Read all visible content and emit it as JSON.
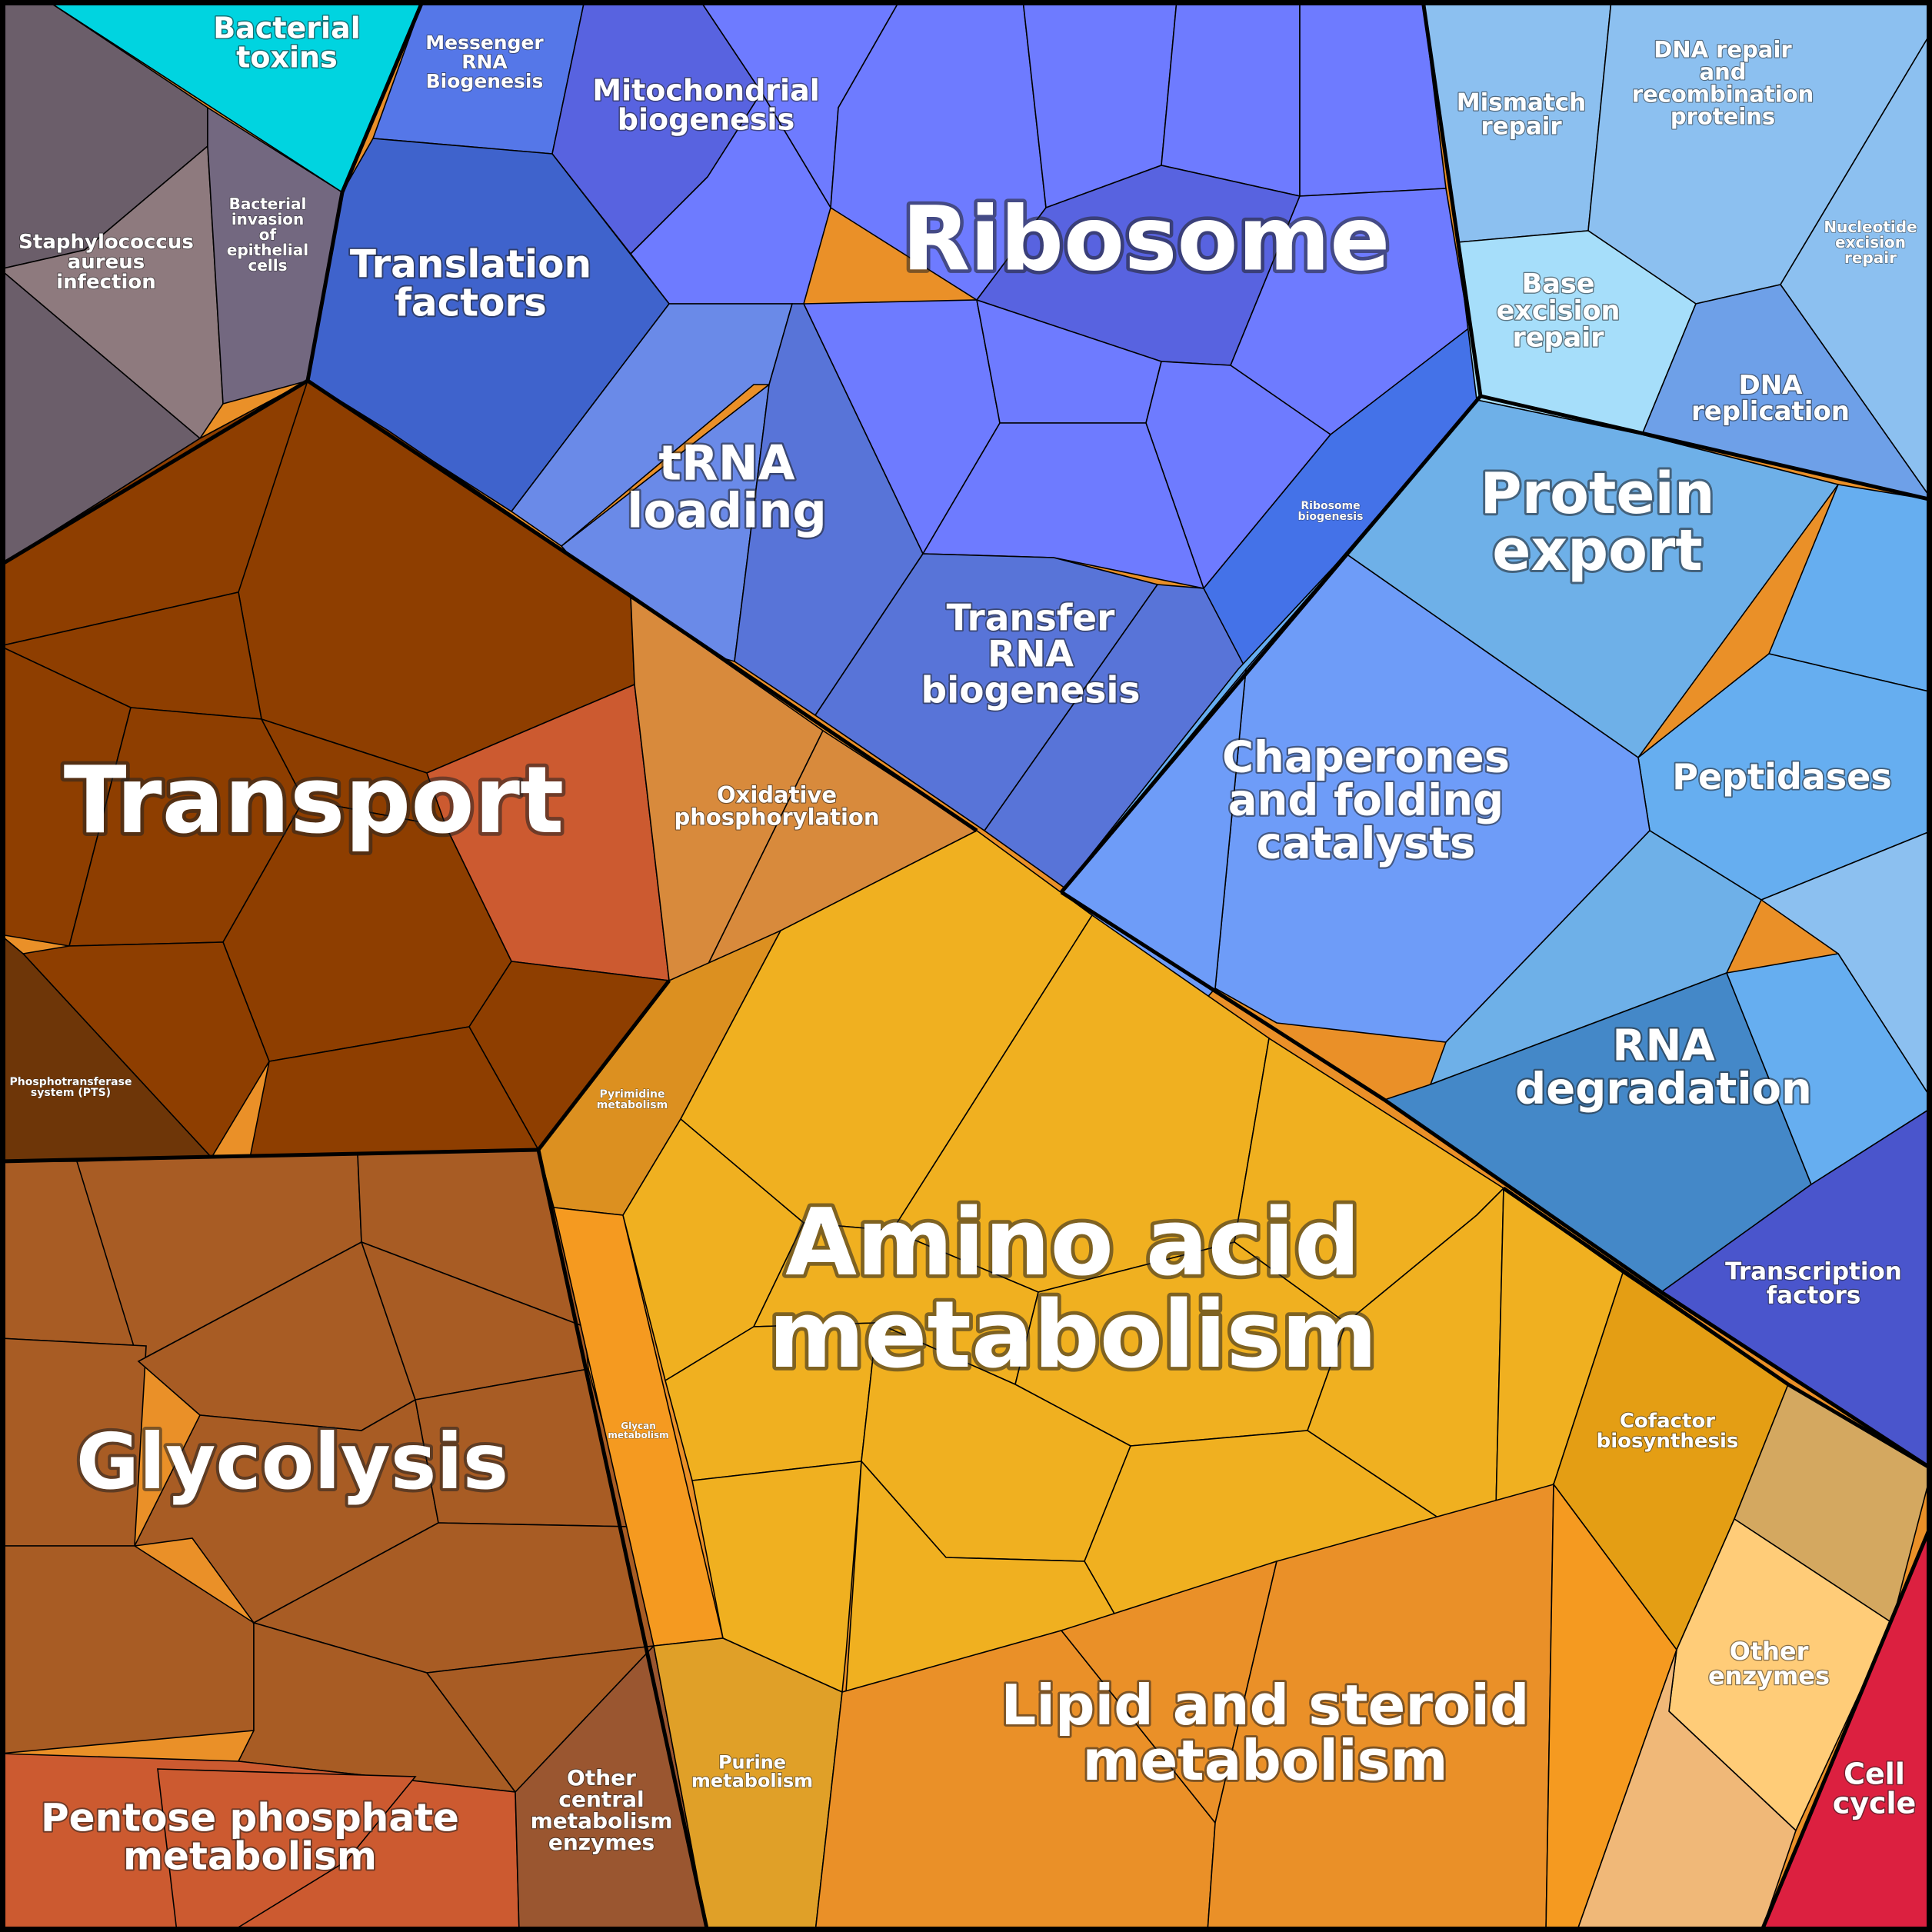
{
  "diagram": {
    "title": "",
    "labels": {
      "bacterial_toxins": [
        "Bacterial",
        "toxins"
      ],
      "messenger_rna": [
        "Messenger",
        "RNA",
        "Biogenesis"
      ],
      "mitochondrial": [
        "Mitochondrial",
        "biogenesis"
      ],
      "ribosome": [
        "Ribosome"
      ],
      "mismatch_repair": [
        "Mismatch",
        "repair"
      ],
      "dna_repair": [
        "DNA repair",
        "and",
        "recombination",
        "proteins"
      ],
      "nucleotide_excision": [
        "Nucleotide",
        "excision",
        "repair"
      ],
      "staphylococcus": [
        "Staphylococcus",
        "aureus",
        "infection"
      ],
      "bacterial_invasion": [
        "Bacterial",
        "invasion",
        "of",
        "epithelial",
        "cells"
      ],
      "translation_factors": [
        "Translation",
        "factors"
      ],
      "base_excision": [
        "Base",
        "excision",
        "repair"
      ],
      "dna_replication": [
        "DNA",
        "replication"
      ],
      "trna_loading": [
        "tRNA",
        "loading"
      ],
      "ribosome_biogenesis": [
        "Ribosome",
        "biogenesis"
      ],
      "protein_export": [
        "Protein",
        "export"
      ],
      "transfer_rna": [
        "Transfer",
        "RNA",
        "biogenesis"
      ],
      "transport": [
        "Transport"
      ],
      "oxidative": [
        "Oxidative",
        "phosphorylation"
      ],
      "chaperones": [
        "Chaperones",
        "and folding",
        "catalysts"
      ],
      "peptidases": [
        "Peptidases"
      ],
      "pts": [
        "Phosphotransferase",
        "system (PTS)"
      ],
      "pyrimidine": [
        "Pyrimidine",
        "metabolism"
      ],
      "rna_degradation": [
        "RNA",
        "degradation"
      ],
      "amino_acid": [
        "Amino acid",
        "metabolism"
      ],
      "transcription_factors": [
        "Transcription",
        "factors"
      ],
      "glycan": [
        "Glycan",
        "metabolism"
      ],
      "glycolysis": [
        "Glycolysis"
      ],
      "cofactor": [
        "Cofactor",
        "biosynthesis"
      ],
      "other_enzymes": [
        "Other",
        "enzymes"
      ],
      "purine": [
        "Purine",
        "metabolism"
      ],
      "lipid": [
        "Lipid and steroid",
        "metabolism"
      ],
      "cell_cycle": [
        "Cell",
        "cycle"
      ],
      "pentose": [
        "Pentose phosphate",
        "metabolism"
      ],
      "other_central": [
        "Other",
        "central",
        "metabolism",
        "enzymes"
      ]
    },
    "colors": {
      "bacterial_toxins": "#00d4e0",
      "infection_gray": "#6b5e6a",
      "staph_light": "#8e7a7e",
      "invasion_gray": "#736880",
      "mrna_blue": "#5577e8",
      "mito_blue": "#5863e0",
      "ribosome_violet": "#6e7bff",
      "translation_blue": "#3f63cc",
      "trna_blue": "#6a8ae8",
      "transfer_rna_blue": "#5874d8",
      "ribo_biogenesis": "#4472e8",
      "repair_light": "#8cc0f0",
      "base_excision": "#a6defa",
      "dna_replication": "#6ea0e8",
      "protein_export": "#6eb0e8",
      "chaperones_blue": "#6e9cf8",
      "peptidases_blue": "#66aef0",
      "rna_degradation": "#4488c8",
      "transcription": "#4a55cc",
      "transport_brown": "#8e3e00",
      "pts_dark": "#6e3608",
      "oxidative_orange": "#d88a3c",
      "glycolysis_brown": "#a85c24",
      "pentose_red": "#cc5a30",
      "other_central": "#9a5630",
      "amino_gold": "#f0b020",
      "pyrimidine": "#dc9020",
      "glycan": "#f59a20",
      "purine": "#e0a028",
      "lipid_orange": "#ea9028",
      "cofactor": "#e49e14",
      "other_enzymes": "#ffcc78",
      "tan": "#d4a860",
      "peach": "#f0b878",
      "cell_cycle_red": "#dc2040"
    }
  }
}
